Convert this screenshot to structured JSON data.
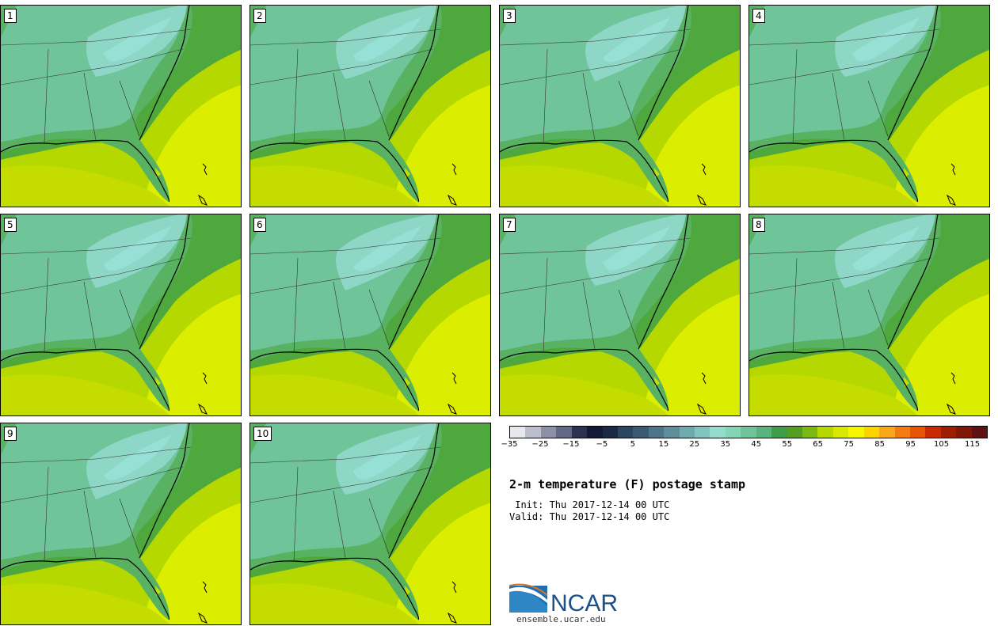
{
  "panels": [
    {
      "label": "1"
    },
    {
      "label": "2"
    },
    {
      "label": "3"
    },
    {
      "label": "4"
    },
    {
      "label": "5"
    },
    {
      "label": "6"
    },
    {
      "label": "7"
    },
    {
      "label": "8"
    },
    {
      "label": "9"
    },
    {
      "label": "10"
    }
  ],
  "colorbar": {
    "colors": [
      "#e6e8ee",
      "#bcbdcd",
      "#8e90a8",
      "#636886",
      "#2e3252",
      "#121a36",
      "#1a2a45",
      "#2c4560",
      "#3a5a74",
      "#4d7488",
      "#5e8e9c",
      "#6faaae",
      "#82c4c0",
      "#95dccd",
      "#86d4b6",
      "#6fc49c",
      "#58b47c",
      "#3f9c48",
      "#559e22",
      "#7cb812",
      "#b4d800",
      "#d8e800",
      "#f6f600",
      "#fdd400",
      "#f8a818",
      "#f37c10",
      "#e85406",
      "#c82a02",
      "#a01e00",
      "#801808",
      "#601012"
    ],
    "tick_labels": [
      "−35",
      "−25",
      "−15",
      "−5",
      "5",
      "15",
      "25",
      "35",
      "45",
      "55",
      "65",
      "75",
      "85",
      "95",
      "105",
      "115"
    ]
  },
  "title": "2-m temperature (F) postage stamp",
  "init_label": " Init: Thu 2017-12-14 00 UTC",
  "valid_label": "Valid: Thu 2017-12-14 00 UTC",
  "logo": {
    "name": "NCAR",
    "url": "ensemble.ucar.edu"
  }
}
